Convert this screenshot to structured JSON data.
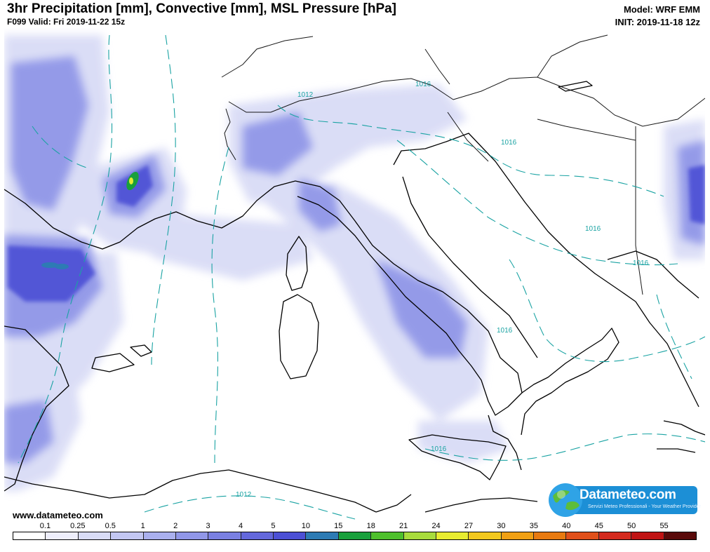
{
  "header": {
    "title": "3hr Precipitation [mm], Convective [mm], MSL Pressure [hPa]",
    "subtitle": "F099 Valid: Fri 2019-11-22 15z",
    "model": "Model: WRF EMM",
    "init": "INIT: 2019-11-18 12z"
  },
  "isobar_labels": [
    "1012",
    "1016",
    "1016",
    "1016",
    "1016",
    "1016",
    "1016",
    "1012"
  ],
  "footer": {
    "site": "www.datameteo.com"
  },
  "logo": {
    "name": "Datameteo.com",
    "tagline": "Servizi Meteo Professionali - Your Weather Provider"
  },
  "legend": {
    "labels": [
      "0.1",
      "0.25",
      "0.5",
      "1",
      "2",
      "3",
      "4",
      "5",
      "10",
      "15",
      "18",
      "21",
      "24",
      "27",
      "30",
      "35",
      "40",
      "45",
      "50",
      "55"
    ],
    "colors": [
      "#ffffff",
      "#eeeefb",
      "#d9dcf6",
      "#c3c7f2",
      "#aab0ee",
      "#9197e8",
      "#7a80e2",
      "#6468dc",
      "#4c50d5",
      "#2d7bb4",
      "#19a03c",
      "#4ec02c",
      "#a8dc3c",
      "#e8ec30",
      "#f2c81e",
      "#f0a014",
      "#e87a10",
      "#e0501a",
      "#d42a1e",
      "#c01414",
      "#5a0a0a"
    ]
  },
  "colors": {
    "isobar": "#1aa3a3",
    "coast": "#000000",
    "contour": "#e05a6a"
  }
}
